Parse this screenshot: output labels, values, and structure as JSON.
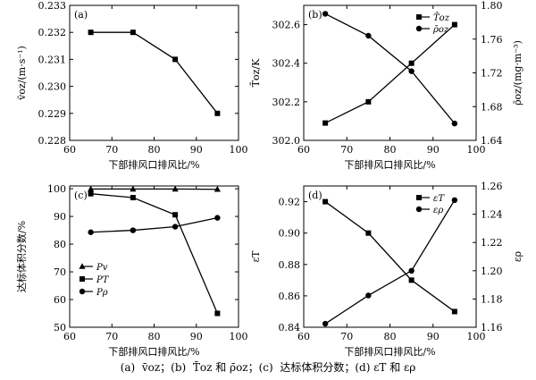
{
  "caption": "(a)  v̄oz；(b)  T̄oz 和 ρ̄oz；(c)  达标体积分数；(d) εT 和 ερ",
  "chart_data": [
    {
      "panel_label": "(a)",
      "type": "line",
      "xlabel": "下部排风口排风比/%",
      "ylabel": "v̄oz/(m·s⁻¹)",
      "xlim": [
        60,
        100
      ],
      "xticks": [
        60,
        70,
        80,
        90,
        100
      ],
      "ylim": [
        0.228,
        0.233
      ],
      "yticks": [
        0.228,
        0.229,
        0.23,
        0.231,
        0.232,
        0.233
      ],
      "ytick_labels": [
        "0.228",
        "0.229",
        "0.230",
        "0.231",
        "0.232",
        "0.233"
      ],
      "x": [
        65,
        75,
        85,
        95
      ],
      "series": [
        {
          "values": [
            0.232,
            0.232,
            0.231,
            0.229
          ],
          "marker": "square"
        }
      ]
    },
    {
      "panel_label": "(b)",
      "type": "line",
      "xlabel": "下部排风口排风比/%",
      "ylabel": "T̄oz/K",
      "y2label": "ρ̄oz/(mg·m⁻³)",
      "xlim": [
        60,
        100
      ],
      "xticks": [
        60,
        70,
        80,
        90,
        100
      ],
      "ylim": [
        302.0,
        302.7
      ],
      "yticks": [
        302.0,
        302.2,
        302.4,
        302.6
      ],
      "ytick_labels": [
        "302.0",
        "302.2",
        "302.4",
        "302.6"
      ],
      "y2lim": [
        1.64,
        1.8
      ],
      "y2ticks": [
        1.64,
        1.68,
        1.72,
        1.76,
        1.8
      ],
      "y2tick_labels": [
        "1.64",
        "1.68",
        "1.72",
        "1.76",
        "1.80"
      ],
      "x": [
        65,
        75,
        85,
        95
      ],
      "series": [
        {
          "name": "T̄oz",
          "axis": "left",
          "values": [
            302.09,
            302.2,
            302.4,
            302.6
          ],
          "marker": "square"
        },
        {
          "name": "ρ̄oz",
          "axis": "right",
          "values": [
            1.79,
            1.764,
            1.722,
            1.66
          ],
          "marker": "circle"
        }
      ],
      "legend_position": "top-right"
    },
    {
      "panel_label": "(c)",
      "type": "line",
      "xlabel": "下部排风口排风比/%",
      "ylabel": "达标体积分数/%",
      "xlim": [
        60,
        100
      ],
      "xticks": [
        60,
        70,
        80,
        90,
        100
      ],
      "ylim": [
        50,
        101
      ],
      "yticks": [
        50,
        60,
        70,
        80,
        90,
        100
      ],
      "ytick_labels": [
        "50",
        "60",
        "70",
        "80",
        "90",
        "100"
      ],
      "x": [
        65,
        75,
        85,
        95
      ],
      "series": [
        {
          "name": "Pv",
          "values": [
            99.9,
            99.9,
            99.9,
            99.8
          ],
          "marker": "triangle"
        },
        {
          "name": "PT",
          "values": [
            98.2,
            96.8,
            90.6,
            55.0
          ],
          "marker": "square"
        },
        {
          "name": "Pρ",
          "values": [
            84.3,
            85.0,
            86.3,
            89.5
          ],
          "marker": "circle"
        }
      ],
      "legend_position": "left-middle"
    },
    {
      "panel_label": "(d)",
      "type": "line",
      "xlabel": "下部排风口排风比/%",
      "ylabel": "εT",
      "y2label": "ερ",
      "xlim": [
        60,
        100
      ],
      "xticks": [
        60,
        70,
        80,
        90,
        100
      ],
      "ylim": [
        0.84,
        0.93
      ],
      "yticks": [
        0.84,
        0.86,
        0.88,
        0.9,
        0.92
      ],
      "ytick_labels": [
        "0.84",
        "0.86",
        "0.88",
        "0.90",
        "0.92"
      ],
      "y2lim": [
        1.16,
        1.26
      ],
      "y2ticks": [
        1.16,
        1.18,
        1.2,
        1.22,
        1.24,
        1.26
      ],
      "y2tick_labels": [
        "1.16",
        "1.18",
        "1.20",
        "1.22",
        "1.24",
        "1.26"
      ],
      "x": [
        65,
        75,
        85,
        95
      ],
      "series": [
        {
          "name": "εT",
          "axis": "left",
          "values": [
            0.92,
            0.9,
            0.87,
            0.85
          ],
          "marker": "square"
        },
        {
          "name": "ερ",
          "axis": "right",
          "values": [
            1.1625,
            1.1825,
            1.2,
            1.25
          ],
          "marker": "circle"
        }
      ],
      "legend_position": "top-right"
    }
  ]
}
